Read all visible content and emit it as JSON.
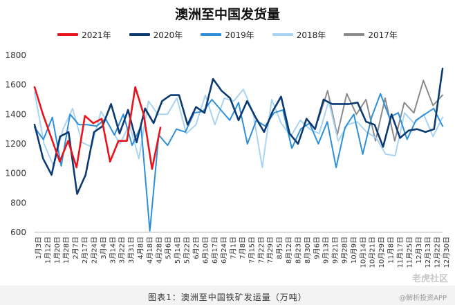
{
  "chart_data": {
    "type": "line",
    "title": "澳洲至中国发货量",
    "caption": "图表1：澳洲至中国铁矿发运量（万吨）",
    "ylim": [
      600,
      1800
    ],
    "yticks": [
      "600",
      "800",
      "1000",
      "1200",
      "1400",
      "1600",
      "1800"
    ],
    "grid": false,
    "legend_position": "top",
    "x_ticks": [
      "1月3日",
      "1月12日",
      "1月20日",
      "1月28日",
      "2月7日",
      "2月17日",
      "2月24日",
      "3月4日",
      "3月14日",
      "3月22日",
      "3月31日",
      "4月8日",
      "4月18日",
      "4月28日",
      "5月6日",
      "5月14日",
      "5月22日",
      "6月2日",
      "6月10日",
      "6月17日",
      "6月24日",
      "7月1日",
      "7月8日",
      "7月15日",
      "7月22日",
      "7月29日",
      "8月5日",
      "8月12日",
      "8月23日",
      "8月30日",
      "9月6日",
      "9月13日",
      "9月21日",
      "9月28日",
      "10月9日",
      "10月14日",
      "10月21日",
      "10月29日",
      "11月8日",
      "11月17日",
      "11月25日",
      "12月3日",
      "12月13日",
      "12月22日",
      "12月30日"
    ],
    "series": [
      {
        "name": "2021年",
        "color": "#e8141b",
        "values": [
          1585,
          1400,
          1240,
          1080,
          1220,
          1040,
          1390,
          1340,
          1370,
          1080,
          1220,
          1220,
          1585,
          1400,
          1030,
          1310
        ]
      },
      {
        "name": "2020年",
        "color": "#0b3a73",
        "values": [
          1330,
          1100,
          990,
          1250,
          1280,
          860,
          990,
          1280,
          1320,
          1470,
          1270,
          1430,
          1210,
          1440,
          1340,
          1490,
          1530,
          1530,
          1330,
          1450,
          1410,
          1640,
          1560,
          1510,
          1360,
          1490,
          1380,
          1280,
          1420,
          1520,
          1270,
          1200,
          1370,
          1300,
          1500,
          1470,
          1470,
          1470,
          1480,
          1350,
          1330,
          1180,
          1400,
          1240,
          1290,
          1300,
          1280,
          1300,
          1710
        ]
      },
      {
        "name": "2019年",
        "color": "#2e8fd8",
        "values": [
          1310,
          1230,
          1380,
          1050,
          1400,
          1330,
          1330,
          1320,
          1370,
          1260,
          1400,
          1190,
          1320,
          610,
          1260,
          1190,
          1300,
          1280,
          1410,
          1420,
          1500,
          1430,
          1360,
          1480,
          1200,
          1360,
          1320,
          1410,
          1430,
          1170,
          1300,
          1340,
          1200,
          1350,
          1040,
          1310,
          1400,
          1130,
          1380,
          1540,
          1380,
          1410,
          1230,
          1360,
          1400,
          1440,
          1320
        ]
      },
      {
        "name": "2018年",
        "color": "#a8d4f3",
        "values": [
          1550,
          1200,
          1050,
          1300,
          1440,
          1210,
          1180,
          1420,
          1310,
          1200,
          1330,
          1100,
          1490,
          1400,
          1400,
          1510,
          1270,
          1330,
          1530,
          1330,
          1510,
          1490,
          1570,
          1420,
          1040,
          1500,
          1340,
          1250,
          1360,
          1300,
          1270,
          1490,
          1220,
          1330,
          1350,
          1280,
          1240,
          1130,
          1120,
          1410,
          1340,
          1400,
          1250,
          1380
        ]
      },
      {
        "name": "2017年",
        "color": "#8a8a8a",
        "values": [
          1360,
          1560,
          1260,
          1540,
          1400,
          1500,
          1220,
          1510,
          1220,
          1480,
          1410,
          1630,
          1460,
          1530
        ]
      }
    ]
  },
  "watermark": "老虎社区",
  "watermark_sub": "@解析投资APP"
}
